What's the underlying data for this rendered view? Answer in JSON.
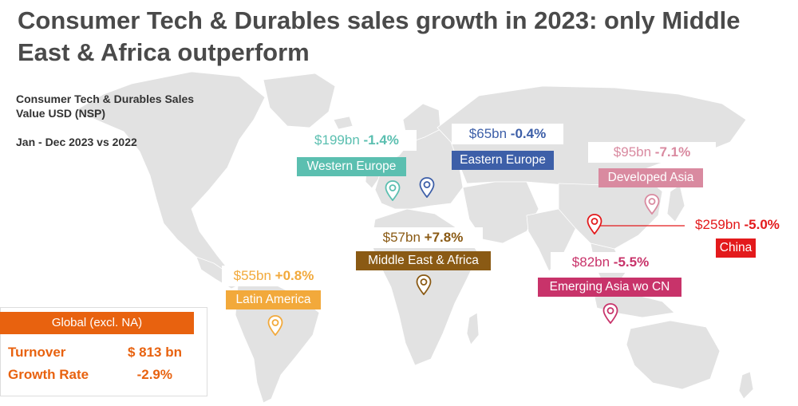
{
  "title": "Consumer Tech & Durables sales growth in 2023: only Middle East & Africa outperform",
  "subtitle": "Consumer Tech & Durables Sales Value USD (NSP)",
  "period": "Jan - Dec 2023 vs 2022",
  "regions": [
    {
      "name": "Western Europe",
      "value": "$199bn",
      "growth": "-1.4%",
      "color": "#5bbfb0"
    },
    {
      "name": "Eastern Europe",
      "value": "$65bn",
      "growth": "-0.4%",
      "color": "#3d5fa8"
    },
    {
      "name": "Developed Asia",
      "value": "$95bn",
      "growth": "-7.1%",
      "color": "#d98aa0"
    },
    {
      "name": "China",
      "value": "$259bn",
      "growth": "-5.0%",
      "color": "#e31a1c"
    },
    {
      "name": "Middle East & Africa",
      "value": "$57bn",
      "growth": "+7.8%",
      "color": "#8a5a14"
    },
    {
      "name": "Emerging Asia wo CN",
      "value": "$82bn",
      "growth": "-5.5%",
      "color": "#c8336a"
    },
    {
      "name": "Latin America",
      "value": "$55bn",
      "growth": "+0.8%",
      "color": "#f2a93b"
    }
  ],
  "global": {
    "heading": "Global (excl. NA)",
    "turnover_label": "Turnover",
    "turnover_value": "$ 813 bn",
    "growth_label": "Growth Rate",
    "growth_value": "-2.9%",
    "color": "#e8620f"
  },
  "icons": [
    "map-pin-icon"
  ]
}
